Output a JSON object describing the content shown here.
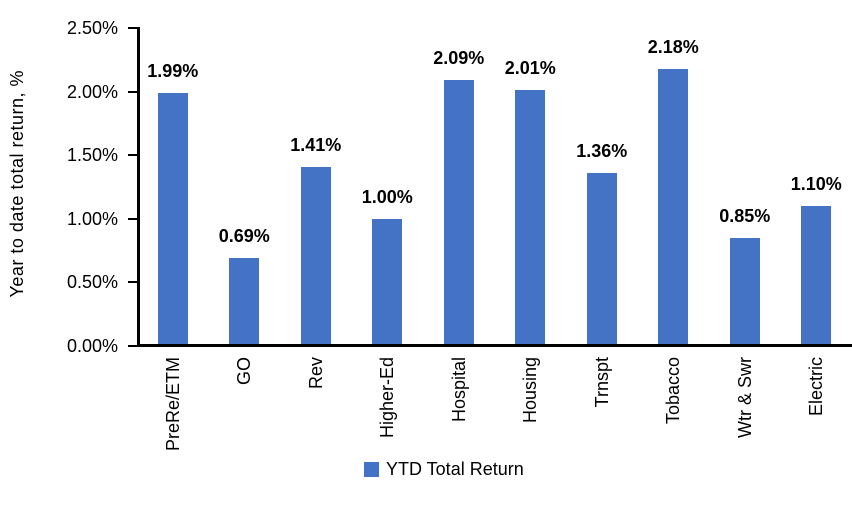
{
  "chart_data": {
    "type": "bar",
    "title": "",
    "ylabel": "Year to date total return, %",
    "xlabel": "",
    "categories": [
      "PreRe/ETM",
      "GO",
      "Rev",
      "Higher-Ed",
      "Hospital",
      "Housing",
      "Trnspt",
      "Tobacco",
      "Wtr & Swr",
      "Electric"
    ],
    "series": [
      {
        "name": "YTD Total Return",
        "values": [
          1.99,
          0.69,
          1.41,
          1.0,
          2.09,
          2.01,
          1.36,
          2.18,
          0.85,
          1.1
        ],
        "color": "#4472C4"
      }
    ],
    "data_labels": [
      "1.99%",
      "0.69%",
      "1.41%",
      "1.00%",
      "2.09%",
      "2.01%",
      "1.36%",
      "2.18%",
      "0.85%",
      "1.10%"
    ],
    "ylim": [
      0,
      2.5
    ],
    "ytick_labels": [
      "0.00%",
      "0.50%",
      "1.00%",
      "1.50%",
      "2.00%",
      "2.50%"
    ],
    "grid": false,
    "legend": [
      {
        "label": "YTD Total Return",
        "color": "#4472C4"
      }
    ],
    "legend_position": "bottom",
    "axis_color": "#000000",
    "background": "#FFFFFF"
  }
}
